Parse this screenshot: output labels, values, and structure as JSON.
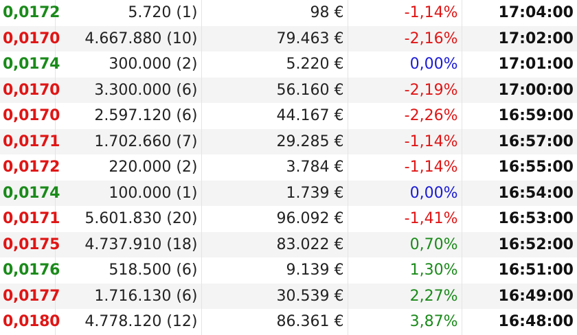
{
  "colors": {
    "up": "#1a8a1a",
    "down": "#e01515",
    "neutral": "#1a1ad6"
  },
  "trades": [
    {
      "price": "0,0172",
      "price_dir": "up",
      "volume": "5.720 (1)",
      "value": "98 €",
      "change": "-1,14%",
      "change_dir": "down",
      "time": "17:04:00"
    },
    {
      "price": "0,0170",
      "price_dir": "down",
      "volume": "4.667.880 (10)",
      "value": "79.463 €",
      "change": "-2,16%",
      "change_dir": "down",
      "time": "17:02:00"
    },
    {
      "price": "0,0174",
      "price_dir": "up",
      "volume": "300.000 (2)",
      "value": "5.220 €",
      "change": "0,00%",
      "change_dir": "neutral",
      "time": "17:01:00"
    },
    {
      "price": "0,0170",
      "price_dir": "down",
      "volume": "3.300.000 (6)",
      "value": "56.160 €",
      "change": "-2,19%",
      "change_dir": "down",
      "time": "17:00:00"
    },
    {
      "price": "0,0170",
      "price_dir": "down",
      "volume": "2.597.120 (6)",
      "value": "44.167 €",
      "change": "-2,26%",
      "change_dir": "down",
      "time": "16:59:00"
    },
    {
      "price": "0,0171",
      "price_dir": "down",
      "volume": "1.702.660 (7)",
      "value": "29.285 €",
      "change": "-1,14%",
      "change_dir": "down",
      "time": "16:57:00"
    },
    {
      "price": "0,0172",
      "price_dir": "down",
      "volume": "220.000 (2)",
      "value": "3.784 €",
      "change": "-1,14%",
      "change_dir": "down",
      "time": "16:55:00"
    },
    {
      "price": "0,0174",
      "price_dir": "up",
      "volume": "100.000 (1)",
      "value": "1.739 €",
      "change": "0,00%",
      "change_dir": "neutral",
      "time": "16:54:00"
    },
    {
      "price": "0,0171",
      "price_dir": "down",
      "volume": "5.601.830 (20)",
      "value": "96.092 €",
      "change": "-1,41%",
      "change_dir": "down",
      "time": "16:53:00"
    },
    {
      "price": "0,0175",
      "price_dir": "down",
      "volume": "4.737.910 (18)",
      "value": "83.022 €",
      "change": "0,70%",
      "change_dir": "up",
      "time": "16:52:00"
    },
    {
      "price": "0,0176",
      "price_dir": "up",
      "volume": "518.500 (6)",
      "value": "9.139 €",
      "change": "1,30%",
      "change_dir": "up",
      "time": "16:51:00"
    },
    {
      "price": "0,0177",
      "price_dir": "down",
      "volume": "1.716.130 (6)",
      "value": "30.539 €",
      "change": "2,27%",
      "change_dir": "up",
      "time": "16:49:00"
    },
    {
      "price": "0,0180",
      "price_dir": "down",
      "volume": "4.778.120 (12)",
      "value": "86.361 €",
      "change": "3,87%",
      "change_dir": "up",
      "time": "16:48:00"
    }
  ]
}
